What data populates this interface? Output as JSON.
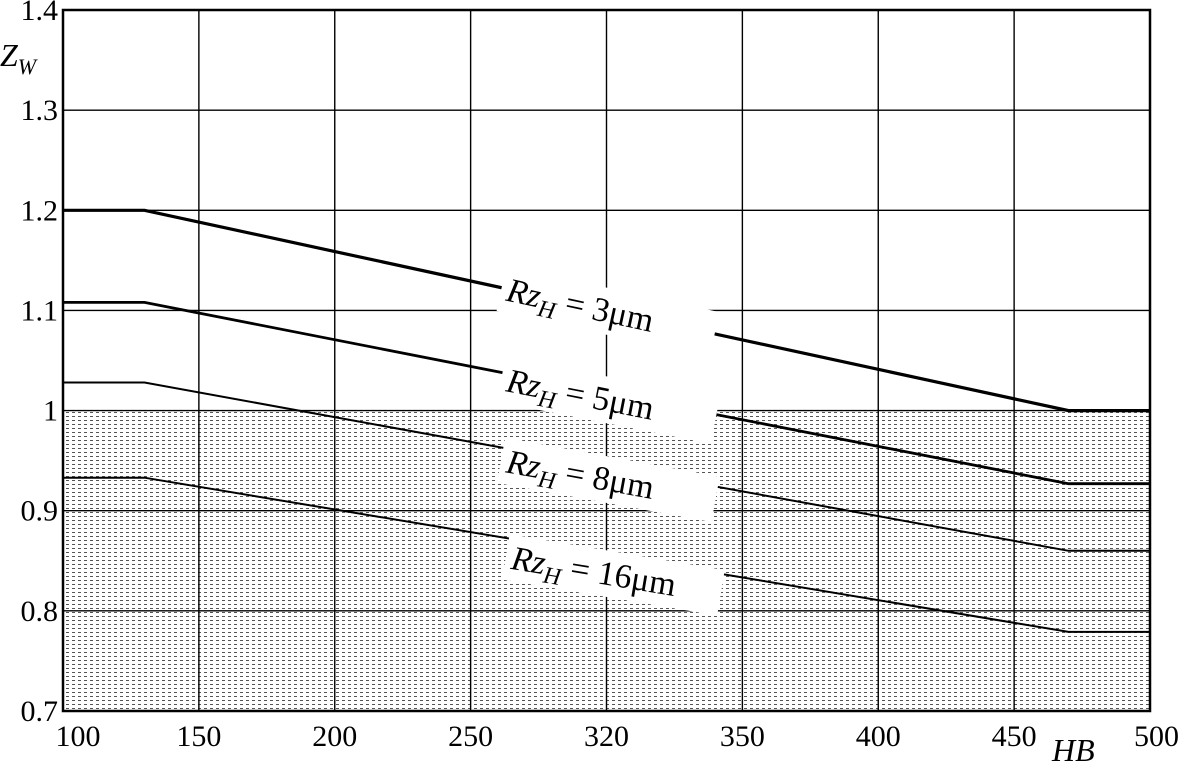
{
  "chart_data": {
    "type": "line",
    "title": "",
    "ylabel": "Z",
    "ylabel_subscript": "W",
    "xlabel": "HB",
    "x_ticks": [
      {
        "value": 100,
        "label": "100"
      },
      {
        "value": 150,
        "label": "150"
      },
      {
        "value": 200,
        "label": "200"
      },
      {
        "value": 250,
        "label": "250"
      },
      {
        "value": 320,
        "label": "320"
      },
      {
        "value": 350,
        "label": "350"
      },
      {
        "value": 400,
        "label": "400"
      },
      {
        "value": 450,
        "label": "450"
      },
      {
        "value": 500,
        "label": "500"
      }
    ],
    "y_ticks": [
      {
        "value": 0.7,
        "label": "0.7"
      },
      {
        "value": 0.8,
        "label": "0.8"
      },
      {
        "value": 0.9,
        "label": "0.9"
      },
      {
        "value": 1.0,
        "label": "1"
      },
      {
        "value": 1.1,
        "label": "1.1"
      },
      {
        "value": 1.2,
        "label": "1.2"
      },
      {
        "value": 1.3,
        "label": "1.3"
      },
      {
        "value": 1.4,
        "label": "1.4"
      }
    ],
    "xlim": [
      100,
      500
    ],
    "ylim": [
      0.7,
      1.4
    ],
    "grid": true,
    "shaded_region": {
      "y_max": 1.0
    },
    "series": [
      {
        "label_main": "Rz",
        "label_sub": "H",
        "label_rest": " = 3μm",
        "x": [
          100,
          130,
          470,
          500
        ],
        "y": [
          1.2,
          1.2,
          1.0,
          1.0
        ]
      },
      {
        "label_main": "Rz",
        "label_sub": "H",
        "label_rest": " = 5μm",
        "x": [
          100,
          130,
          470,
          500
        ],
        "y": [
          1.108,
          1.108,
          0.927,
          0.927
        ]
      },
      {
        "label_main": "Rz",
        "label_sub": "H",
        "label_rest": " = 8μm",
        "x": [
          100,
          130,
          470,
          500
        ],
        "y": [
          1.028,
          1.028,
          0.86,
          0.86
        ]
      },
      {
        "label_main": "Rz",
        "label_sub": "H",
        "label_rest": " = 16μm",
        "x": [
          100,
          130,
          470,
          500
        ],
        "y": [
          0.933,
          0.933,
          0.779,
          0.779
        ]
      }
    ]
  }
}
